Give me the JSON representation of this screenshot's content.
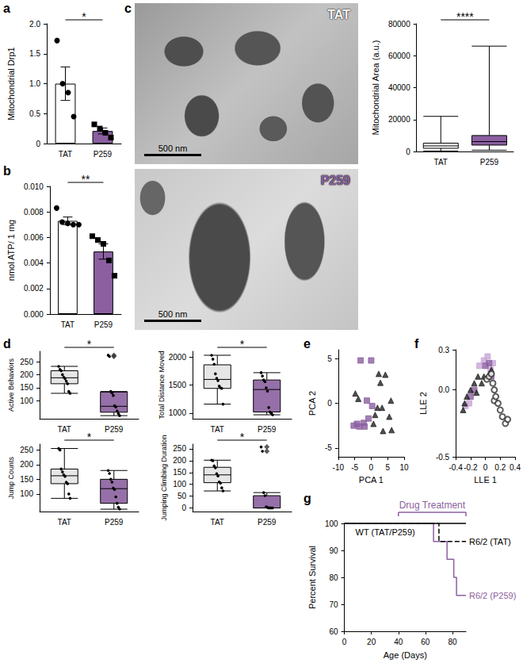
{
  "chart_data": [
    {
      "panel": "a",
      "type": "bar",
      "ylabel": "Mitochondrial Drp1",
      "categories": [
        "TAT",
        "P259"
      ],
      "values": [
        1.0,
        0.21
      ],
      "errors": [
        0.28,
        0.05
      ],
      "colors": [
        "#ffffff",
        "#8b5fa0"
      ],
      "points": [
        {
          "marker": "circle",
          "values": [
            1.72,
            1.0,
            0.85,
            0.45
          ]
        },
        {
          "marker": "square",
          "values": [
            0.32,
            0.25,
            0.18,
            0.1
          ]
        }
      ],
      "ylim": [
        0,
        2
      ],
      "yticks": [
        0,
        0.5,
        {
          "value": 1,
          "label": "1.0"
        },
        1.5,
        {
          "value": 2,
          "label": "2.0"
        }
      ],
      "significance": "*"
    },
    {
      "panel": "b",
      "type": "bar",
      "ylabel": "nmol ATP/ 1 mg",
      "categories": [
        "TAT",
        "P259"
      ],
      "values": [
        0.0073,
        0.0049
      ],
      "errors": [
        0.0003,
        0.0006
      ],
      "colors": [
        "#ffffff",
        "#8b5fa0"
      ],
      "points": [
        {
          "marker": "circle",
          "values": [
            0.0083,
            0.0072,
            0.0071,
            0.007,
            0.007
          ]
        },
        {
          "marker": "square",
          "values": [
            0.0061,
            0.0058,
            0.0055,
            0.0042,
            0.003
          ]
        }
      ],
      "ylim": [
        0,
        0.01
      ],
      "yticks": [
        {
          "value": 0,
          "label": "0.000"
        },
        0.002,
        0.004,
        0.006,
        0.008,
        {
          "value": 0.01,
          "label": "0.010"
        }
      ],
      "significance": "**"
    },
    {
      "panel": "c",
      "type": "boxplot",
      "ylabel": "Mitochondrial Area (a.u.)",
      "categories": [
        "TAT",
        "P259"
      ],
      "boxes": [
        [
          300,
          2000,
          3500,
          5200,
          22000
        ],
        [
          800,
          4000,
          6200,
          10000,
          66000
        ]
      ],
      "colors": [
        "#ffffff",
        "#8b5fa0"
      ],
      "ylim": [
        0,
        80000
      ],
      "yticks": [
        0,
        20000,
        40000,
        60000,
        80000
      ],
      "significance": "****",
      "images": [
        {
          "label": "TAT",
          "scale_bar": "500 nm"
        },
        {
          "label": "P259",
          "scale_bar": "500 nm"
        }
      ]
    },
    {
      "panel": "d",
      "type": "boxplot",
      "ylabel": "Active Behaviors",
      "categories": [
        "TAT",
        "P259"
      ],
      "boxes": [
        [
          128,
          165,
          188,
          215,
          232
        ],
        [
          42,
          55,
          78,
          133,
          135
        ]
      ],
      "outliers": [
        [],
        [
          270,
          275
        ]
      ],
      "points": [
        [
          232,
          220,
          215,
          200,
          190,
          185,
          175,
          165,
          135,
          128
        ],
        [
          275,
          270,
          135,
          130,
          120,
          80,
          75,
          60,
          50,
          42
        ]
      ],
      "colors": [
        "#e6e6e6",
        "#9670a8"
      ],
      "ylim": [
        30,
        290
      ],
      "yticks": [
        100,
        150,
        200,
        250
      ],
      "significance": "*"
    },
    {
      "type": "boxplot",
      "ylabel": "Total Distance Moved",
      "categories": [
        "TAT",
        "P259"
      ],
      "boxes": [
        [
          1160,
          1440,
          1600,
          1860,
          2030
        ],
        [
          970,
          1020,
          1420,
          1590,
          1720
        ]
      ],
      "points": [
        [
          2030,
          1960,
          1870,
          1700,
          1620,
          1580,
          1480,
          1450,
          1440,
          1160
        ],
        [
          1720,
          1660,
          1590,
          1560,
          1450,
          1390,
          1100,
          1020,
          1000,
          970
        ]
      ],
      "colors": [
        "#e6e6e6",
        "#9670a8"
      ],
      "ylim": [
        900,
        2100
      ],
      "yticks": [
        1000,
        1500,
        2000
      ],
      "significance": "*"
    },
    {
      "type": "boxplot",
      "ylabel": "Jump Counts",
      "categories": [
        "TAT",
        "P259"
      ],
      "boxes": [
        [
          85,
          135,
          162,
          185,
          255
        ],
        [
          48,
          68,
          118,
          150,
          180
        ]
      ],
      "points": [
        [
          255,
          250,
          185,
          175,
          165,
          160,
          140,
          135,
          100,
          85
        ],
        [
          180,
          170,
          150,
          140,
          120,
          115,
          90,
          68,
          55,
          48
        ]
      ],
      "colors": [
        "#e6e6e6",
        "#9670a8"
      ],
      "ylim": [
        40,
        270
      ],
      "yticks": [
        100,
        150,
        200,
        250
      ],
      "significance": "*"
    },
    {
      "type": "boxplot",
      "ylabel": "Jumping Climbing Duration",
      "categories": [
        "TAT",
        "P259"
      ],
      "boxes": [
        [
          72,
          107,
          140,
          172,
          202
        ],
        [
          0,
          0,
          0,
          52,
          65
        ]
      ],
      "outliers": [
        [],
        [
          240,
          258
        ]
      ],
      "points": [
        [
          202,
          200,
          178,
          170,
          145,
          135,
          110,
          105,
          85,
          72
        ],
        [
          258,
          240,
          65,
          52,
          5,
          2,
          0,
          0,
          0,
          0
        ]
      ],
      "colors": [
        "#e6e6e6",
        "#9670a8"
      ],
      "ylim": [
        -15,
        270
      ],
      "yticks": [
        0,
        50,
        100,
        150,
        200,
        250
      ],
      "significance": "*"
    },
    {
      "panel": "e",
      "type": "scatter",
      "xlabel": "PCA 1",
      "ylabel": "PCA 2",
      "series": [
        {
          "color": "#8b5fa0",
          "marker": "rect",
          "points": [
            [
              -5.3,
              -2.5
            ],
            [
              -4.3,
              -2.3
            ],
            [
              -3.6,
              -2.6
            ],
            [
              -3.2,
              4.8
            ],
            [
              -2.3,
              -2.2
            ],
            [
              -2.0,
              -2.6
            ],
            [
              -1.3,
              0.3
            ],
            [
              -0.8,
              -1.7
            ],
            [
              0.0,
              4.8
            ],
            [
              0.3,
              -0.3
            ]
          ]
        },
        {
          "color": "#222222",
          "marker": "triangle",
          "points": [
            [
              -4.8,
              1.1
            ],
            [
              -3.9,
              0.5
            ],
            [
              0.7,
              -2.3
            ],
            [
              1.2,
              -1.3
            ],
            [
              1.9,
              -0.5
            ],
            [
              2.3,
              3.3
            ],
            [
              2.8,
              2.3
            ],
            [
              3.3,
              -0.5
            ],
            [
              3.6,
              -3.1
            ],
            [
              4.3,
              3.2
            ],
            [
              5.5,
              -1.5
            ],
            [
              6.0,
              0.3
            ],
            [
              6.2,
              -3.0
            ]
          ]
        }
      ],
      "xlim": [
        -10,
        10
      ],
      "xticks": [
        -10,
        -5,
        0,
        5,
        10
      ],
      "ylim": [
        -6,
        6
      ],
      "yticks": [
        -5,
        0,
        5
      ]
    },
    {
      "panel": "f",
      "type": "scatter",
      "xlabel": "LLE 1",
      "ylabel": "LLE 2",
      "series": [
        {
          "color": "#c8a6d6",
          "marker": "rect",
          "points": [
            [
              -0.27,
              -0.12
            ],
            [
              -0.22,
              -0.1
            ],
            [
              -0.08,
              0.18
            ],
            [
              -0.02,
              0.22
            ],
            [
              0.03,
              0.25
            ],
            [
              0.07,
              0.15
            ],
            [
              0.1,
              0.2
            ]
          ]
        },
        {
          "color": "#8b5fa0",
          "marker": "rect",
          "points": [
            [
              -0.2,
              -0.05
            ],
            [
              -0.15,
              0.0
            ],
            [
              0.0,
              0.18
            ],
            [
              0.05,
              0.2
            ],
            [
              0.08,
              0.1
            ]
          ]
        },
        {
          "color": "#222222",
          "marker": "triangle",
          "points": [
            [
              -0.3,
              -0.15
            ],
            [
              -0.28,
              -0.1
            ],
            [
              -0.25,
              -0.05
            ],
            [
              -0.2,
              0.0
            ],
            [
              -0.15,
              0.05
            ],
            [
              -0.12,
              -0.02
            ],
            [
              -0.1,
              0.1
            ],
            [
              -0.05,
              0.05
            ],
            [
              -0.02,
              0.1
            ],
            [
              0.05,
              0.12
            ],
            [
              0.08,
              0.15
            ]
          ]
        },
        {
          "color": "#333333",
          "marker": "emptyCircle",
          "points": [
            [
              0.02,
              0.08
            ],
            [
              0.05,
              0.1
            ],
            [
              0.08,
              0.12
            ],
            [
              0.1,
              0.05
            ],
            [
              0.12,
              0.0
            ],
            [
              0.12,
              -0.08
            ],
            [
              0.14,
              -0.05
            ],
            [
              0.17,
              -0.1
            ],
            [
              0.2,
              -0.15
            ],
            [
              0.23,
              -0.2
            ],
            [
              0.27,
              -0.25
            ],
            [
              0.3,
              -0.22
            ]
          ]
        }
      ],
      "xlim": [
        -0.4,
        0.4
      ],
      "xticks": [
        -0.4,
        -0.2,
        0,
        0.2,
        0.4
      ],
      "ylim": [
        -0.5,
        0.3
      ],
      "yticks": [
        -0.5,
        {
          "value": 0,
          "label": "0.0"
        },
        0.3
      ]
    },
    {
      "panel": "g",
      "type": "line",
      "xlabel": "Age (Days)",
      "ylabel": "Percent Survival",
      "series": [
        {
          "name": "WT (TAT/P259)",
          "color": "#000000",
          "line_style": "solid",
          "x": [
            0,
            90
          ],
          "values": [
            100,
            100
          ]
        },
        {
          "name": "R6/2 (TAT)",
          "color": "#000000",
          "line_style": "dashed",
          "x": [
            0,
            70,
            70,
            90
          ],
          "values": [
            100,
            100,
            93.3,
            93.3
          ]
        },
        {
          "name": "R6/2 (P259)",
          "color": "#8b5fa0",
          "line_style": "solid",
          "x": [
            0,
            66,
            66,
            76,
            76,
            81,
            81,
            83,
            83,
            90
          ],
          "values": [
            100,
            100,
            93.3,
            93.3,
            86.7,
            86.7,
            80,
            80,
            73.3,
            73.3
          ]
        }
      ],
      "annotation": {
        "text": "Drug Treatment",
        "x": [
          40,
          90
        ],
        "color": "#8b5fa0"
      },
      "xlim": [
        0,
        90
      ],
      "xticks": [
        0,
        20,
        40,
        60,
        80
      ],
      "ylim": [
        60,
        100
      ],
      "yticks": [
        60,
        70,
        80,
        90,
        100
      ]
    }
  ]
}
